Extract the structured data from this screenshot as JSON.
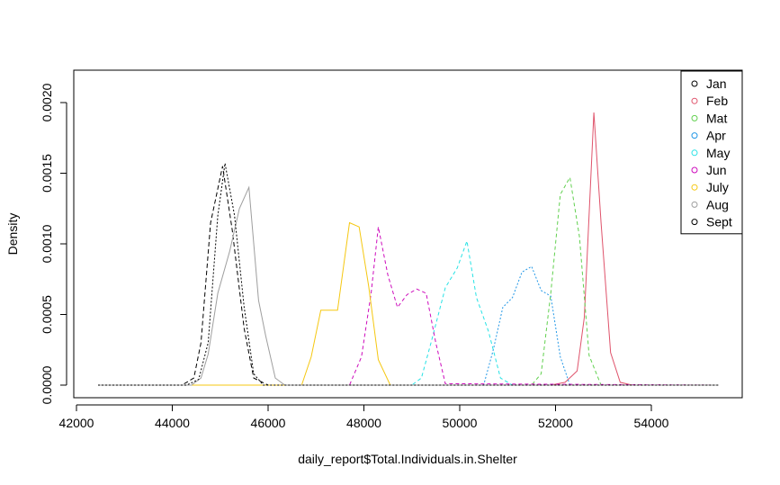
{
  "chart_data": {
    "type": "line",
    "title": "",
    "xlabel": "daily_report$Total.Individuals.in.Shelter",
    "ylabel": "Density",
    "xlim": [
      42000,
      55700
    ],
    "ylim": [
      -0.0001,
      0.0022
    ],
    "x_ticks": [
      42000,
      44000,
      46000,
      48000,
      50000,
      52000,
      54000
    ],
    "x_tick_labels": [
      "42000",
      "44000",
      "46000",
      "48000",
      "50000",
      "52000",
      "54000"
    ],
    "y_ticks": [
      0,
      0.0005,
      0.001,
      0.0015,
      0.002
    ],
    "y_tick_labels": [
      "0.0000",
      "0.0005",
      "0.0010",
      "0.0015",
      "0.0020"
    ],
    "legend_position": "top-right",
    "series": [
      {
        "name": "Jan",
        "color": "#000000",
        "dash": "5,3",
        "x": [
          42450,
          44200,
          44450,
          44600,
          44800,
          45050,
          45250,
          45500,
          45700,
          46000,
          55400
        ],
        "y": [
          0,
          0,
          5e-05,
          0.0003,
          0.00115,
          0.00155,
          0.0011,
          0.0004,
          5e-05,
          0,
          0
        ]
      },
      {
        "name": "Feb",
        "color": "#DF536B",
        "dash": "",
        "x": [
          42450,
          51900,
          52200,
          52450,
          52600,
          52800,
          52950,
          53150,
          53350,
          53600,
          55400
        ],
        "y": [
          0,
          0,
          2e-05,
          0.0001,
          0.00048,
          0.00193,
          0.00115,
          0.00023,
          2e-05,
          0,
          0
        ]
      },
      {
        "name": "Mat",
        "color": "#61D04F",
        "dash": "4,3",
        "x": [
          42450,
          51500,
          51700,
          51900,
          52100,
          52300,
          52500,
          52700,
          52950,
          55400
        ],
        "y": [
          0,
          0,
          8e-05,
          0.00065,
          0.00135,
          0.00147,
          0.00105,
          0.00021,
          0,
          0
        ]
      },
      {
        "name": "Apr",
        "color": "#2297E6",
        "dash": "2,2",
        "x": [
          42450,
          50500,
          50700,
          50900,
          51100,
          51300,
          51500,
          51700,
          51900,
          52100,
          52300,
          55400
        ],
        "y": [
          0,
          0,
          0.00025,
          0.00055,
          0.00062,
          0.0008,
          0.00084,
          0.00067,
          0.00063,
          0.0002,
          0,
          0
        ]
      },
      {
        "name": "May",
        "color": "#28E2E5",
        "dash": "4,3",
        "x": [
          42450,
          49000,
          49200,
          49400,
          49700,
          49950,
          50150,
          50350,
          50600,
          50850,
          51100,
          55400
        ],
        "y": [
          0,
          0,
          5e-05,
          0.0003,
          0.00069,
          0.00083,
          0.00102,
          0.00062,
          0.00038,
          5e-05,
          0,
          0
        ]
      },
      {
        "name": "Jun",
        "color": "#CD0BBC",
        "dash": "4,3",
        "x": [
          42450,
          47700,
          47950,
          48150,
          48300,
          48500,
          48700,
          48900,
          49100,
          49300,
          49500,
          49700,
          55400
        ],
        "y": [
          0,
          0,
          0.0002,
          0.00065,
          0.00112,
          0.00078,
          0.00055,
          0.00064,
          0.00068,
          0.00065,
          0.0003,
          1e-05,
          0
        ]
      },
      {
        "name": "July",
        "color": "#F5C710",
        "dash": "",
        "x": [
          42450,
          46700,
          46900,
          47100,
          47250,
          47450,
          47700,
          47900,
          48100,
          48300,
          48550,
          55400
        ],
        "y": [
          0,
          0,
          0.0002,
          0.00053,
          0.00053,
          0.00053,
          0.00115,
          0.00112,
          0.0007,
          0.00018,
          0,
          0
        ]
      },
      {
        "name": "Aug",
        "color": "#9E9E9E",
        "dash": "",
        "x": [
          42450,
          44400,
          44600,
          44750,
          44950,
          45200,
          45400,
          45600,
          45800,
          45950,
          46150,
          46350,
          55400
        ],
        "y": [
          0,
          0,
          5e-05,
          0.00022,
          0.00065,
          0.00095,
          0.00125,
          0.0014,
          0.0006,
          0.00035,
          5e-05,
          0,
          0
        ]
      },
      {
        "name": "Sept",
        "color": "#000000",
        "dash": "2,2",
        "x": [
          42450,
          44300,
          44550,
          44750,
          44950,
          45100,
          45300,
          45500,
          45700,
          45900,
          55400
        ],
        "y": [
          0,
          0,
          4e-05,
          0.0003,
          0.0012,
          0.00157,
          0.0012,
          0.00055,
          8e-05,
          0,
          0
        ]
      }
    ]
  }
}
